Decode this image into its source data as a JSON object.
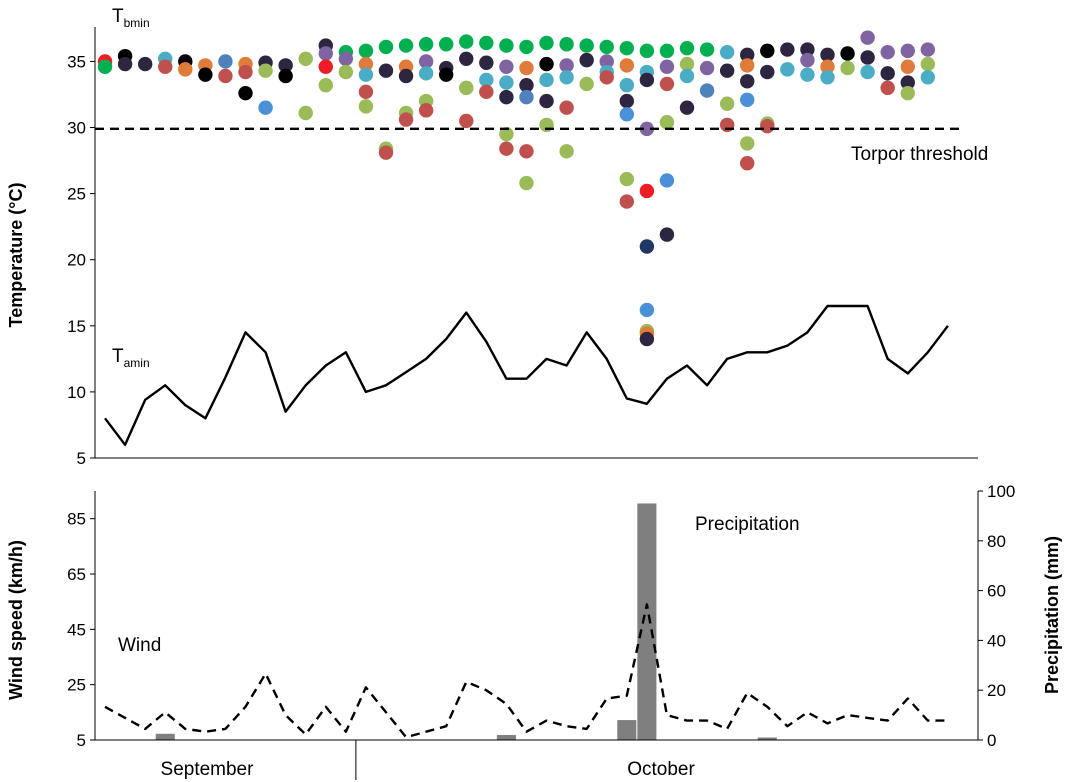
{
  "chart_data": [
    {
      "type": "scatter",
      "panel": "top",
      "ylabel": "Temperature (°C)",
      "ylim": [
        5,
        37
      ],
      "yticks": [
        5,
        10,
        15,
        20,
        25,
        30,
        35
      ],
      "xlim": [
        0.5,
        44.5
      ],
      "tbmin_label": {
        "main": "T",
        "sub": "bmin"
      },
      "tamin_label": {
        "main": "T",
        "sub": "amin"
      },
      "threshold": {
        "label": "Torpor threshold",
        "value": 29.9
      },
      "tamin_series": [
        8.0,
        6.0,
        9.4,
        10.5,
        9.0,
        8.0,
        11.1,
        14.5,
        13.0,
        8.5,
        10.5,
        12.0,
        13.0,
        10.0,
        10.5,
        11.5,
        12.5,
        14.0,
        16.0,
        13.8,
        11.0,
        11.0,
        12.5,
        12.0,
        14.5,
        12.5,
        9.5,
        9.1,
        11.0,
        12.0,
        10.5,
        12.5,
        13.0,
        13.0,
        13.5,
        14.5,
        16.5,
        16.5,
        16.5,
        12.5,
        11.4,
        13.0,
        15.0
      ],
      "dot_colors": {
        "red": "#ee1c25",
        "black": "#000000",
        "olive": "#9bbb59",
        "darkred": "#c0504d",
        "blue": "#4f81bd",
        "lightblue": "#4a90d9",
        "orange": "#e07b39",
        "purple": "#8064a2",
        "cyan": "#4bacc6",
        "navy": "#1f3864",
        "darkpurple": "#2e2540",
        "green": "#00b050"
      },
      "tbmin_points": [
        {
          "day": 1,
          "temp": 35.0,
          "color": "red"
        },
        {
          "day": 1,
          "temp": 34.6,
          "color": "green"
        },
        {
          "day": 2,
          "temp": 35.4,
          "color": "black"
        },
        {
          "day": 2,
          "temp": 34.8,
          "color": "darkpurple"
        },
        {
          "day": 3,
          "temp": 34.8,
          "color": "darkpurple"
        },
        {
          "day": 4,
          "temp": 35.2,
          "color": "cyan"
        },
        {
          "day": 4,
          "temp": 34.6,
          "color": "darkred"
        },
        {
          "day": 5,
          "temp": 35.0,
          "color": "black"
        },
        {
          "day": 5,
          "temp": 34.4,
          "color": "orange"
        },
        {
          "day": 6,
          "temp": 34.7,
          "color": "orange"
        },
        {
          "day": 6,
          "temp": 34.0,
          "color": "black"
        },
        {
          "day": 7,
          "temp": 35.0,
          "color": "blue"
        },
        {
          "day": 7,
          "temp": 33.9,
          "color": "darkred"
        },
        {
          "day": 8,
          "temp": 34.8,
          "color": "orange"
        },
        {
          "day": 8,
          "temp": 34.2,
          "color": "darkred"
        },
        {
          "day": 8,
          "temp": 32.6,
          "color": "black"
        },
        {
          "day": 9,
          "temp": 34.9,
          "color": "darkpurple"
        },
        {
          "day": 9,
          "temp": 34.3,
          "color": "olive"
        },
        {
          "day": 9,
          "temp": 31.5,
          "color": "lightblue"
        },
        {
          "day": 10,
          "temp": 34.7,
          "color": "darkpurple"
        },
        {
          "day": 10,
          "temp": 33.9,
          "color": "black"
        },
        {
          "day": 11,
          "temp": 35.2,
          "color": "olive"
        },
        {
          "day": 11,
          "temp": 31.1,
          "color": "olive"
        },
        {
          "day": 12,
          "temp": 36.2,
          "color": "darkpurple"
        },
        {
          "day": 12,
          "temp": 35.6,
          "color": "purple"
        },
        {
          "day": 12,
          "temp": 34.6,
          "color": "red"
        },
        {
          "day": 12,
          "temp": 33.2,
          "color": "olive"
        },
        {
          "day": 13,
          "temp": 35.7,
          "color": "green"
        },
        {
          "day": 13,
          "temp": 35.2,
          "color": "purple"
        },
        {
          "day": 13,
          "temp": 34.2,
          "color": "olive"
        },
        {
          "day": 14,
          "temp": 35.8,
          "color": "green"
        },
        {
          "day": 14,
          "temp": 34.8,
          "color": "orange"
        },
        {
          "day": 14,
          "temp": 34.0,
          "color": "cyan"
        },
        {
          "day": 14,
          "temp": 32.7,
          "color": "darkred"
        },
        {
          "day": 14,
          "temp": 31.6,
          "color": "olive"
        },
        {
          "day": 15,
          "temp": 36.1,
          "color": "green"
        },
        {
          "day": 15,
          "temp": 34.3,
          "color": "darkpurple"
        },
        {
          "day": 15,
          "temp": 28.4,
          "color": "olive"
        },
        {
          "day": 15,
          "temp": 28.1,
          "color": "darkred"
        },
        {
          "day": 16,
          "temp": 36.2,
          "color": "green"
        },
        {
          "day": 16,
          "temp": 34.6,
          "color": "orange"
        },
        {
          "day": 16,
          "temp": 33.9,
          "color": "darkpurple"
        },
        {
          "day": 16,
          "temp": 31.1,
          "color": "olive"
        },
        {
          "day": 16,
          "temp": 30.6,
          "color": "darkred"
        },
        {
          "day": 17,
          "temp": 36.3,
          "color": "green"
        },
        {
          "day": 17,
          "temp": 35.0,
          "color": "purple"
        },
        {
          "day": 17,
          "temp": 34.1,
          "color": "cyan"
        },
        {
          "day": 17,
          "temp": 32.0,
          "color": "olive"
        },
        {
          "day": 17,
          "temp": 31.3,
          "color": "darkred"
        },
        {
          "day": 18,
          "temp": 36.3,
          "color": "green"
        },
        {
          "day": 18,
          "temp": 34.5,
          "color": "darkpurple"
        },
        {
          "day": 18,
          "temp": 34.0,
          "color": "black"
        },
        {
          "day": 19,
          "temp": 36.5,
          "color": "green"
        },
        {
          "day": 19,
          "temp": 35.2,
          "color": "darkpurple"
        },
        {
          "day": 19,
          "temp": 33.0,
          "color": "olive"
        },
        {
          "day": 19,
          "temp": 30.5,
          "color": "darkred"
        },
        {
          "day": 20,
          "temp": 36.4,
          "color": "green"
        },
        {
          "day": 20,
          "temp": 34.9,
          "color": "darkpurple"
        },
        {
          "day": 20,
          "temp": 33.6,
          "color": "cyan"
        },
        {
          "day": 20,
          "temp": 32.7,
          "color": "darkred"
        },
        {
          "day": 21,
          "temp": 36.2,
          "color": "green"
        },
        {
          "day": 21,
          "temp": 34.6,
          "color": "purple"
        },
        {
          "day": 21,
          "temp": 33.4,
          "color": "cyan"
        },
        {
          "day": 21,
          "temp": 32.3,
          "color": "darkpurple"
        },
        {
          "day": 21,
          "temp": 29.5,
          "color": "olive"
        },
        {
          "day": 21,
          "temp": 28.4,
          "color": "darkred"
        },
        {
          "day": 22,
          "temp": 36.1,
          "color": "green"
        },
        {
          "day": 22,
          "temp": 34.5,
          "color": "orange"
        },
        {
          "day": 22,
          "temp": 33.2,
          "color": "darkpurple"
        },
        {
          "day": 22,
          "temp": 32.3,
          "color": "blue"
        },
        {
          "day": 22,
          "temp": 28.2,
          "color": "darkred"
        },
        {
          "day": 22,
          "temp": 25.8,
          "color": "olive"
        },
        {
          "day": 23,
          "temp": 36.4,
          "color": "green"
        },
        {
          "day": 23,
          "temp": 34.8,
          "color": "black"
        },
        {
          "day": 23,
          "temp": 33.6,
          "color": "cyan"
        },
        {
          "day": 23,
          "temp": 32.0,
          "color": "darkpurple"
        },
        {
          "day": 23,
          "temp": 30.2,
          "color": "olive"
        },
        {
          "day": 24,
          "temp": 36.3,
          "color": "green"
        },
        {
          "day": 24,
          "temp": 34.7,
          "color": "purple"
        },
        {
          "day": 24,
          "temp": 33.8,
          "color": "cyan"
        },
        {
          "day": 24,
          "temp": 31.5,
          "color": "darkred"
        },
        {
          "day": 24,
          "temp": 28.2,
          "color": "olive"
        },
        {
          "day": 25,
          "temp": 36.2,
          "color": "green"
        },
        {
          "day": 25,
          "temp": 35.1,
          "color": "darkpurple"
        },
        {
          "day": 25,
          "temp": 33.3,
          "color": "olive"
        },
        {
          "day": 26,
          "temp": 36.1,
          "color": "green"
        },
        {
          "day": 26,
          "temp": 35.0,
          "color": "purple"
        },
        {
          "day": 26,
          "temp": 34.2,
          "color": "cyan"
        },
        {
          "day": 26,
          "temp": 33.8,
          "color": "darkred"
        },
        {
          "day": 27,
          "temp": 36.0,
          "color": "green"
        },
        {
          "day": 27,
          "temp": 34.7,
          "color": "orange"
        },
        {
          "day": 27,
          "temp": 33.2,
          "color": "cyan"
        },
        {
          "day": 27,
          "temp": 32.0,
          "color": "darkpurple"
        },
        {
          "day": 27,
          "temp": 31.0,
          "color": "lightblue"
        },
        {
          "day": 27,
          "temp": 26.1,
          "color": "olive"
        },
        {
          "day": 27,
          "temp": 24.4,
          "color": "darkred"
        },
        {
          "day": 28,
          "temp": 35.8,
          "color": "green"
        },
        {
          "day": 28,
          "temp": 34.2,
          "color": "cyan"
        },
        {
          "day": 28,
          "temp": 33.6,
          "color": "darkpurple"
        },
        {
          "day": 28,
          "temp": 29.9,
          "color": "purple"
        },
        {
          "day": 28,
          "temp": 25.2,
          "color": "red"
        },
        {
          "day": 28,
          "temp": 21.0,
          "color": "navy"
        },
        {
          "day": 28,
          "temp": 16.2,
          "color": "lightblue"
        },
        {
          "day": 28,
          "temp": 14.6,
          "color": "olive"
        },
        {
          "day": 28,
          "temp": 14.4,
          "color": "orange"
        },
        {
          "day": 28,
          "temp": 14.0,
          "color": "darkpurple"
        },
        {
          "day": 29,
          "temp": 35.8,
          "color": "green"
        },
        {
          "day": 29,
          "temp": 34.6,
          "color": "purple"
        },
        {
          "day": 29,
          "temp": 33.3,
          "color": "darkred"
        },
        {
          "day": 29,
          "temp": 30.4,
          "color": "olive"
        },
        {
          "day": 29,
          "temp": 26.0,
          "color": "lightblue"
        },
        {
          "day": 29,
          "temp": 21.9,
          "color": "darkpurple"
        },
        {
          "day": 30,
          "temp": 36.0,
          "color": "green"
        },
        {
          "day": 30,
          "temp": 34.8,
          "color": "olive"
        },
        {
          "day": 30,
          "temp": 33.9,
          "color": "cyan"
        },
        {
          "day": 30,
          "temp": 31.5,
          "color": "darkpurple"
        },
        {
          "day": 31,
          "temp": 35.9,
          "color": "green"
        },
        {
          "day": 31,
          "temp": 34.5,
          "color": "purple"
        },
        {
          "day": 31,
          "temp": 32.8,
          "color": "blue"
        },
        {
          "day": 32,
          "temp": 35.7,
          "color": "cyan"
        },
        {
          "day": 32,
          "temp": 34.3,
          "color": "darkpurple"
        },
        {
          "day": 32,
          "temp": 31.8,
          "color": "olive"
        },
        {
          "day": 32,
          "temp": 30.2,
          "color": "darkred"
        },
        {
          "day": 33,
          "temp": 35.5,
          "color": "darkpurple"
        },
        {
          "day": 33,
          "temp": 34.7,
          "color": "orange"
        },
        {
          "day": 33,
          "temp": 33.5,
          "color": "darkpurple"
        },
        {
          "day": 33,
          "temp": 32.1,
          "color": "lightblue"
        },
        {
          "day": 33,
          "temp": 28.8,
          "color": "olive"
        },
        {
          "day": 33,
          "temp": 27.3,
          "color": "darkred"
        },
        {
          "day": 34,
          "temp": 35.8,
          "color": "black"
        },
        {
          "day": 34,
          "temp": 34.2,
          "color": "darkpurple"
        },
        {
          "day": 34,
          "temp": 30.3,
          "color": "olive"
        },
        {
          "day": 34,
          "temp": 30.1,
          "color": "darkred"
        },
        {
          "day": 35,
          "temp": 35.9,
          "color": "darkpurple"
        },
        {
          "day": 35,
          "temp": 34.4,
          "color": "cyan"
        },
        {
          "day": 36,
          "temp": 35.9,
          "color": "darkpurple"
        },
        {
          "day": 36,
          "temp": 35.1,
          "color": "purple"
        },
        {
          "day": 36,
          "temp": 34.0,
          "color": "cyan"
        },
        {
          "day": 37,
          "temp": 35.5,
          "color": "darkpurple"
        },
        {
          "day": 37,
          "temp": 34.6,
          "color": "orange"
        },
        {
          "day": 37,
          "temp": 33.8,
          "color": "cyan"
        },
        {
          "day": 38,
          "temp": 35.6,
          "color": "black"
        },
        {
          "day": 38,
          "temp": 34.5,
          "color": "olive"
        },
        {
          "day": 39,
          "temp": 36.8,
          "color": "purple"
        },
        {
          "day": 39,
          "temp": 35.3,
          "color": "darkpurple"
        },
        {
          "day": 39,
          "temp": 34.2,
          "color": "cyan"
        },
        {
          "day": 40,
          "temp": 35.7,
          "color": "purple"
        },
        {
          "day": 40,
          "temp": 34.1,
          "color": "darkpurple"
        },
        {
          "day": 40,
          "temp": 33.0,
          "color": "darkred"
        },
        {
          "day": 41,
          "temp": 35.8,
          "color": "purple"
        },
        {
          "day": 41,
          "temp": 34.6,
          "color": "orange"
        },
        {
          "day": 41,
          "temp": 33.4,
          "color": "darkpurple"
        },
        {
          "day": 41,
          "temp": 32.6,
          "color": "olive"
        },
        {
          "day": 42,
          "temp": 35.9,
          "color": "purple"
        },
        {
          "day": 42,
          "temp": 34.8,
          "color": "olive"
        },
        {
          "day": 42,
          "temp": 33.8,
          "color": "cyan"
        }
      ]
    },
    {
      "type": "bar+line",
      "panel": "bottom",
      "ylabel_left": "Wind speed (km/h)",
      "ylim_left": [
        5,
        95
      ],
      "yticks_left": [
        5,
        25,
        45,
        65,
        85
      ],
      "ylabel_right": "Precipitation (mm)",
      "ylim_right": [
        0,
        100
      ],
      "yticks_right": [
        0,
        20,
        40,
        60,
        80,
        100
      ],
      "xlim": [
        0.5,
        44.5
      ],
      "wind_label": "Wind",
      "precip_label": "Precipitation",
      "wind_series": [
        17,
        13,
        9,
        15,
        9,
        8,
        9,
        17,
        29,
        14,
        7,
        17,
        8,
        24,
        15,
        6,
        8,
        10,
        26,
        23,
        18,
        8,
        12,
        10,
        9,
        20,
        21,
        54,
        14,
        12,
        12,
        9,
        22,
        17,
        10,
        15,
        11,
        14,
        13,
        12,
        20,
        12,
        12
      ],
      "precip_series": [
        0,
        0,
        0,
        2.5,
        0,
        0,
        0,
        0,
        0,
        0,
        0,
        0,
        0,
        0,
        0,
        0,
        0,
        0,
        0,
        0,
        2,
        0,
        0,
        0,
        0,
        0,
        8,
        95,
        0,
        0,
        0,
        0,
        0,
        1,
        0,
        0,
        0,
        0,
        0,
        0,
        0,
        0,
        0
      ],
      "bar_color": "#7f7f7f",
      "months": [
        "September",
        "October"
      ],
      "month_divider_day": 13
    }
  ]
}
